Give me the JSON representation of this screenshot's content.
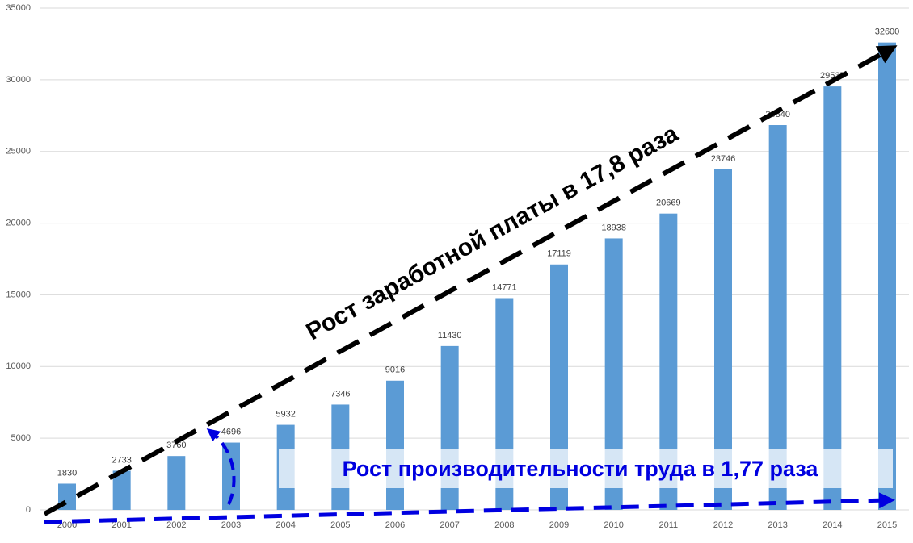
{
  "chart_data": {
    "type": "bar",
    "categories": [
      "2000",
      "2001",
      "2002",
      "2003",
      "2004",
      "2005",
      "2006",
      "2007",
      "2008",
      "2009",
      "2010",
      "2011",
      "2012",
      "2013",
      "2014",
      "2015"
    ],
    "values": [
      1830,
      2733,
      3760,
      4696,
      5932,
      7346,
      9016,
      11430,
      14771,
      17119,
      18938,
      20669,
      23746,
      26840,
      29535,
      32600
    ],
    "color": "#5b9bd5",
    "ylim": [
      0,
      35000
    ],
    "yticks": [
      0,
      5000,
      10000,
      15000,
      20000,
      25000,
      30000,
      35000
    ],
    "grid": true,
    "annotations": [
      "Рост заработной платы в 17,8 раза",
      "Рост производительности труда в 1,77 раза"
    ]
  }
}
